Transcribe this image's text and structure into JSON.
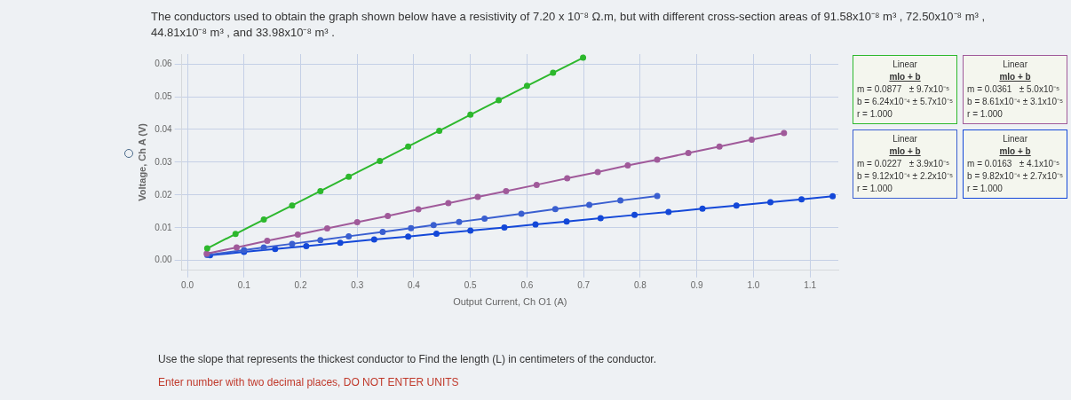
{
  "chart_data": {
    "type": "line",
    "title": "The conductors used to obtain the graph shown below have a resistivity of 7.20 x 10⁻⁸ Ω.m, but with different cross-section areas of 91.58x10⁻⁸ m³ , 72.50x10⁻⁸ m³ , 44.81x10⁻⁸ m³ , and 33.98x10⁻⁸ m³ .",
    "xlabel": "Output Current, Ch O1 (A)",
    "ylabel": "Voltage, Ch A (V)",
    "xlim": [
      -0.01,
      1.15
    ],
    "xticks": [
      {
        "value": 0,
        "label": "0.0"
      },
      0.1,
      0.2,
      0.3,
      0.4,
      0.5,
      0.6,
      0.7,
      0.8,
      0.9,
      {
        "value": 1,
        "label": "1.0"
      },
      1.1
    ],
    "ylim": [
      -0.003,
      0.063
    ],
    "yticks": [
      {
        "value": 0,
        "label": "0.00"
      },
      0.01,
      0.02,
      0.03,
      0.04,
      0.05,
      0.06
    ],
    "grid": true,
    "legend": false,
    "marker": "circle",
    "line_style": "solid",
    "series": [
      {
        "color": "#2db82d",
        "x": [
          0.035,
          0.085,
          0.135,
          0.185,
          0.235,
          0.285,
          0.34,
          0.39,
          0.445,
          0.5,
          0.55,
          0.6,
          0.646,
          0.699
        ],
        "values": [
          0.0037,
          0.0081,
          0.0125,
          0.0168,
          0.0212,
          0.0256,
          0.0304,
          0.0348,
          0.0396,
          0.0445,
          0.0489,
          0.0533,
          0.0573,
          0.0619
        ]
      },
      {
        "color": "#a05a9a",
        "x": [
          0.034,
          0.087,
          0.141,
          0.195,
          0.247,
          0.3,
          0.354,
          0.408,
          0.461,
          0.513,
          0.563,
          0.617,
          0.671,
          0.725,
          0.778,
          0.83,
          0.885,
          0.94,
          0.997,
          1.054
        ],
        "values": [
          0.0021,
          0.004,
          0.006,
          0.0079,
          0.0098,
          0.0117,
          0.0136,
          0.0156,
          0.0175,
          0.0194,
          0.0212,
          0.0231,
          0.0251,
          0.027,
          0.029,
          0.0308,
          0.0328,
          0.0348,
          0.0369,
          0.0389
        ]
      },
      {
        "color": "#3a5fd0",
        "x": [
          0.035,
          0.1,
          0.135,
          0.185,
          0.235,
          0.285,
          0.345,
          0.395,
          0.435,
          0.48,
          0.525,
          0.59,
          0.65,
          0.71,
          0.765,
          0.83
        ],
        "values": [
          0.0017,
          0.0032,
          0.004,
          0.0051,
          0.0062,
          0.0074,
          0.0087,
          0.0099,
          0.0108,
          0.0118,
          0.0128,
          0.0143,
          0.0157,
          0.017,
          0.0183,
          0.0197
        ]
      },
      {
        "color": "#1448d8",
        "x": [
          0.04,
          0.1,
          0.155,
          0.21,
          0.27,
          0.33,
          0.39,
          0.44,
          0.5,
          0.56,
          0.615,
          0.67,
          0.73,
          0.79,
          0.85,
          0.91,
          0.97,
          1.03,
          1.085,
          1.14
        ],
        "values": [
          0.0016,
          0.0026,
          0.0035,
          0.0044,
          0.0054,
          0.0064,
          0.0073,
          0.0082,
          0.0091,
          0.0101,
          0.011,
          0.0119,
          0.0129,
          0.0139,
          0.0148,
          0.0158,
          0.0168,
          0.0178,
          0.0187,
          0.0196
        ]
      }
    ],
    "annotations": [
      "Linear\nmlo + b\nm = 0.0877   ± 9.7x10⁻⁵\nb = 6.24x10⁻⁴ ± 5.7x10⁻⁵\nr = 1.000",
      "Linear\nmlo + b\nm = 0.0361   ± 5.0x10⁻⁵\nb = 8.61x10⁻⁴ ± 3.1x10⁻⁵\nr = 1.000",
      "Linear\nmlo + b\nm = 0.0227   ± 3.9x10⁻⁵\nb = 9.12x10⁻⁴ ± 2.2x10⁻⁵\nr = 1.000",
      "Linear\nmlo + b\nm = 0.0163   ± 4.1x10⁻⁵\nb = 9.82x10⁻⁴ ± 2.7x10⁻⁵\nr = 1.000",
      "Use the slope that represents the thickest conductor to Find the length (L) in centimeters of the conductor.",
      "Enter number with two decimal places, DO NOT ENTER UNITS"
    ]
  }
}
